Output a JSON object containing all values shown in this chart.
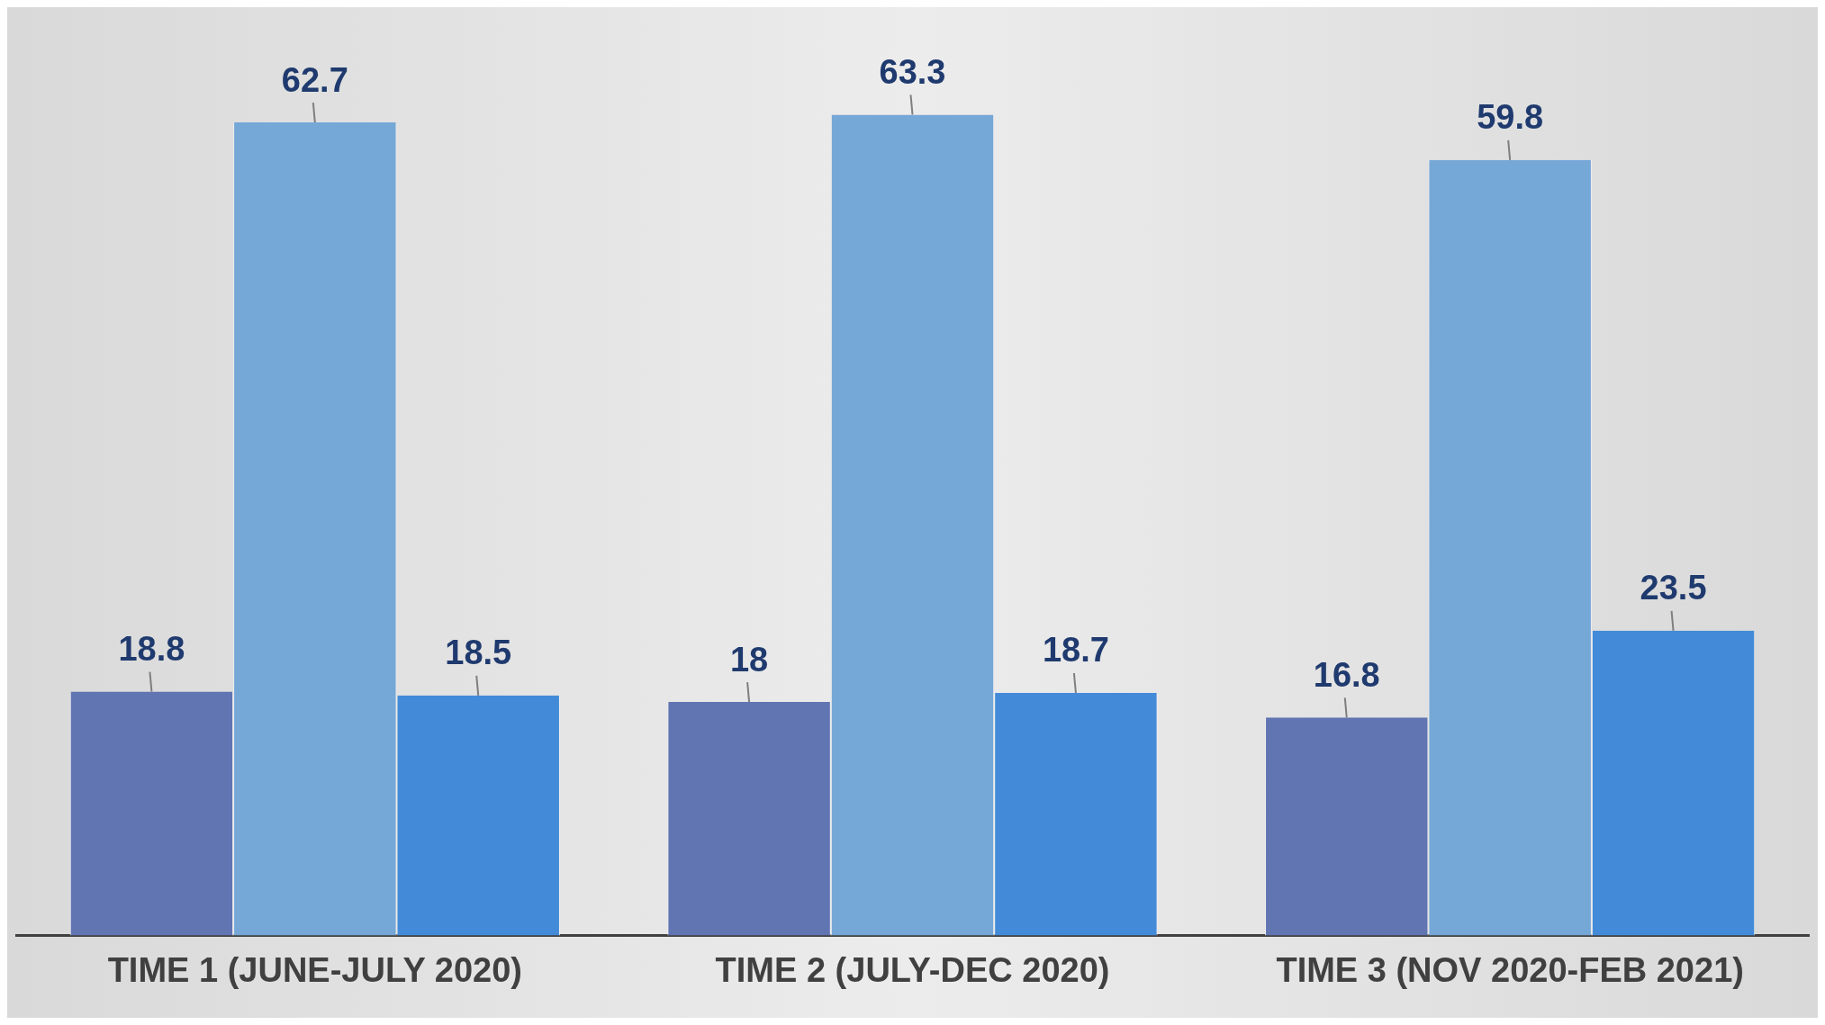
{
  "chart_data": {
    "type": "bar",
    "categories": [
      "TIME 1 (JUNE-JULY 2020)",
      "TIME 2 (JULY-DEC 2020)",
      "TIME 3 (NOV 2020-FEB 2021)"
    ],
    "series": [
      {
        "color": "#6175b3",
        "values": [
          18.8,
          18,
          16.8
        ]
      },
      {
        "color": "#75a7d7",
        "values": [
          62.7,
          63.3,
          59.8
        ]
      },
      {
        "color": "#438bd9",
        "values": [
          18.5,
          18.7,
          23.5
        ]
      }
    ],
    "data_labels": true,
    "grid": false,
    "legend": false
  }
}
